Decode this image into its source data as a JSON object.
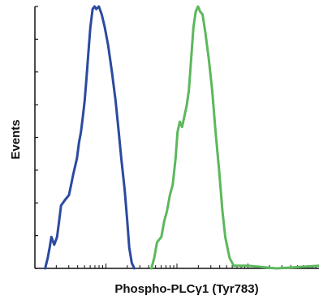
{
  "chart_data": {
    "type": "histogram",
    "xlabel": "Phospho-PLCγ1 (Tyr783)",
    "ylabel": "Events",
    "x_scale": "log",
    "xlim": [
      0,
      100
    ],
    "ylim": [
      0,
      100
    ],
    "grid": false,
    "legend": "none",
    "series": [
      {
        "color": "#2b4aa0",
        "x": [
          3.6,
          4.5,
          5.2,
          5.8,
          6.8,
          7.8,
          8.5,
          9.2,
          10.5,
          12.0,
          13.5,
          14.8,
          15.5,
          16.2,
          16.9,
          17.5,
          18.1,
          18.8,
          19.5,
          20.3,
          21.0,
          21.6,
          22.5,
          23.5,
          24.6,
          25.8,
          27.1,
          28.4,
          29.5,
          30.4,
          31.6,
          32.5,
          33.2,
          34.1,
          35.0
        ],
        "y": [
          0,
          4,
          8,
          12,
          9,
          12,
          18,
          24,
          26,
          28,
          36,
          42,
          48,
          52,
          58,
          64,
          72,
          82,
          92,
          99,
          100,
          99,
          100,
          97,
          92,
          85,
          75,
          64,
          52,
          42,
          30,
          18,
          8,
          2,
          0
        ]
      },
      {
        "color": "#5cb85c",
        "x": [
          41.0,
          42.0,
          43.0,
          44.5,
          45.5,
          46.5,
          47.5,
          48.5,
          49.5,
          50.2,
          51.0,
          51.8,
          52.6,
          53.4,
          54.2,
          55.0,
          55.8,
          56.6,
          57.4,
          58.2,
          59.0,
          60.0,
          61.2,
          62.4,
          63.6,
          64.8,
          66.0,
          67.0,
          68.5,
          70.0,
          75.0,
          85.0,
          100.0
        ],
        "y": [
          0,
          4,
          10,
          12,
          18,
          22,
          28,
          32,
          42,
          52,
          56,
          54,
          58,
          62,
          68,
          80,
          92,
          98,
          100,
          98,
          97,
          90,
          80,
          68,
          52,
          38,
          22,
          12,
          4,
          1,
          1,
          0,
          1
        ]
      }
    ]
  }
}
